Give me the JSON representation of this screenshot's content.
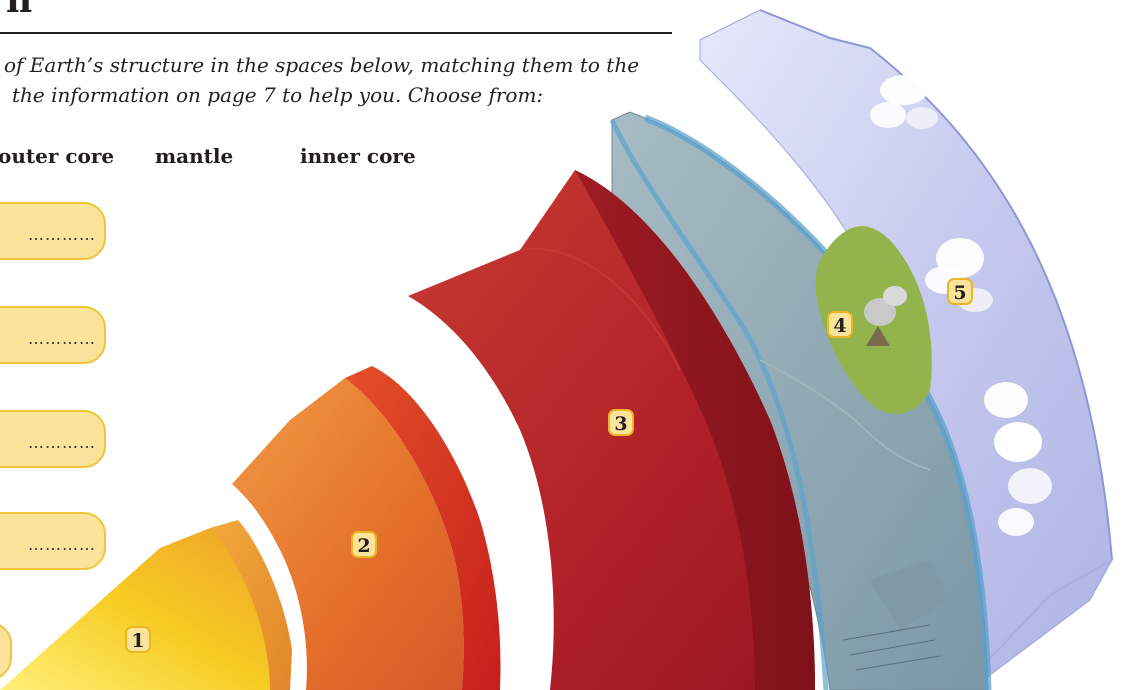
{
  "title": "n",
  "instruction": {
    "line1": "of Earth’s structure in the spaces below, matching them to the",
    "line2": "the information on page 7 to help you. Choose from:"
  },
  "choices": [
    "outer core",
    "mantle",
    "inner core"
  ],
  "answer_boxes": [
    {
      "placeholder": "…………"
    },
    {
      "placeholder": "…………"
    },
    {
      "placeholder": "…………"
    },
    {
      "placeholder": "…………"
    }
  ],
  "layers": [
    {
      "number": "1",
      "color": "#f7c92a"
    },
    {
      "number": "2",
      "color": "#e77a2a"
    },
    {
      "number": "3",
      "color": "#b51f24"
    },
    {
      "number": "4",
      "color": "#8fb0bf"
    },
    {
      "number": "5",
      "color": "#c9cdee"
    }
  ]
}
